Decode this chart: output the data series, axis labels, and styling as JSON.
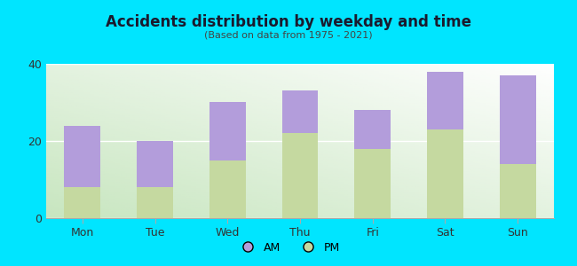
{
  "categories": [
    "Mon",
    "Tue",
    "Wed",
    "Thu",
    "Fri",
    "Sat",
    "Sun"
  ],
  "pm_values": [
    8,
    8,
    15,
    22,
    18,
    23,
    14
  ],
  "am_values": [
    16,
    12,
    15,
    11,
    10,
    15,
    23
  ],
  "am_color": "#b39ddb",
  "pm_color": "#c5d9a0",
  "title": "Accidents distribution by weekday and time",
  "subtitle": "(Based on data from 1975 - 2021)",
  "ylim": [
    0,
    40
  ],
  "yticks": [
    0,
    20,
    40
  ],
  "background_color": "#00e5ff",
  "plot_bg_top_right": "#ffffff",
  "plot_bg_bottom_left": "#c8e6c0",
  "bar_width": 0.5,
  "legend_labels": [
    "AM",
    "PM"
  ]
}
